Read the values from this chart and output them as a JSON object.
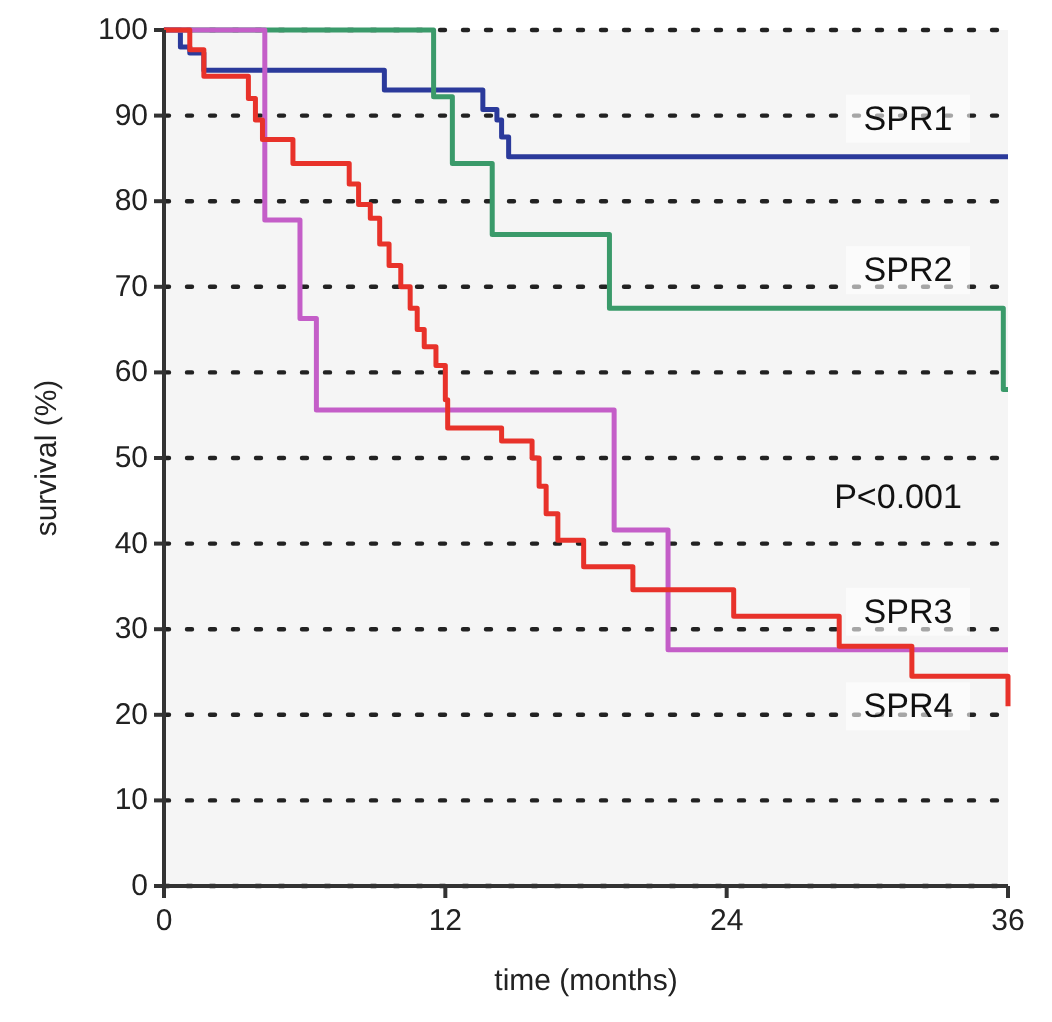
{
  "chart_data": {
    "type": "step",
    "xlabel": "time (months)",
    "ylabel": "survival (%)",
    "xlim": [
      0,
      36
    ],
    "ylim": [
      0,
      100
    ],
    "xticks": [
      0,
      12,
      24,
      36
    ],
    "yticks": [
      0,
      10,
      20,
      30,
      40,
      50,
      60,
      70,
      80,
      90,
      100
    ],
    "grid": "y",
    "line_style": "solid",
    "marker": "none",
    "annotations": [
      "P<0.001"
    ],
    "series": [
      {
        "name": "SPR1",
        "color": "#2b3a9b",
        "x": [
          0,
          0.7,
          1.1,
          1.7,
          9.4,
          13.6,
          14.2,
          14.4,
          14.7,
          36
        ],
        "values": [
          100,
          98,
          97.3,
          95.3,
          93,
          90.7,
          89.5,
          87.5,
          85.2,
          85.2
        ]
      },
      {
        "name": "SPR2",
        "color": "#3a9a6a",
        "x": [
          0,
          11.5,
          12.3,
          14,
          19,
          35.8,
          36
        ],
        "values": [
          100,
          92.2,
          84.4,
          76.1,
          67.5,
          58,
          58
        ]
      },
      {
        "name": "SPR3",
        "color": "#c45ec8",
        "x": [
          0,
          4.3,
          5.8,
          6.5,
          19.2,
          21.5,
          36
        ],
        "values": [
          100,
          77.8,
          66.3,
          55.6,
          41.6,
          27.6,
          27.6
        ]
      },
      {
        "name": "SPR4",
        "color": "#e8322a",
        "x": [
          0,
          1.1,
          1.7,
          3.6,
          3.9,
          4.2,
          5.5,
          7.9,
          8.3,
          8.8,
          9.2,
          9.6,
          10.1,
          10.5,
          10.8,
          11.1,
          11.6,
          12,
          12.1,
          14.4,
          15.7,
          16,
          16.3,
          16.8,
          17.9,
          20,
          24.3,
          28.8,
          31.9,
          36
        ],
        "values": [
          100,
          97.7,
          94.6,
          92,
          89.5,
          87.2,
          84.4,
          82,
          79.6,
          78,
          75,
          72.5,
          70,
          67.5,
          65,
          63,
          60.8,
          56.8,
          53.5,
          52,
          50,
          46.7,
          43.5,
          40.4,
          37.3,
          34.6,
          31.5,
          28,
          24.5,
          21
        ]
      }
    ]
  }
}
